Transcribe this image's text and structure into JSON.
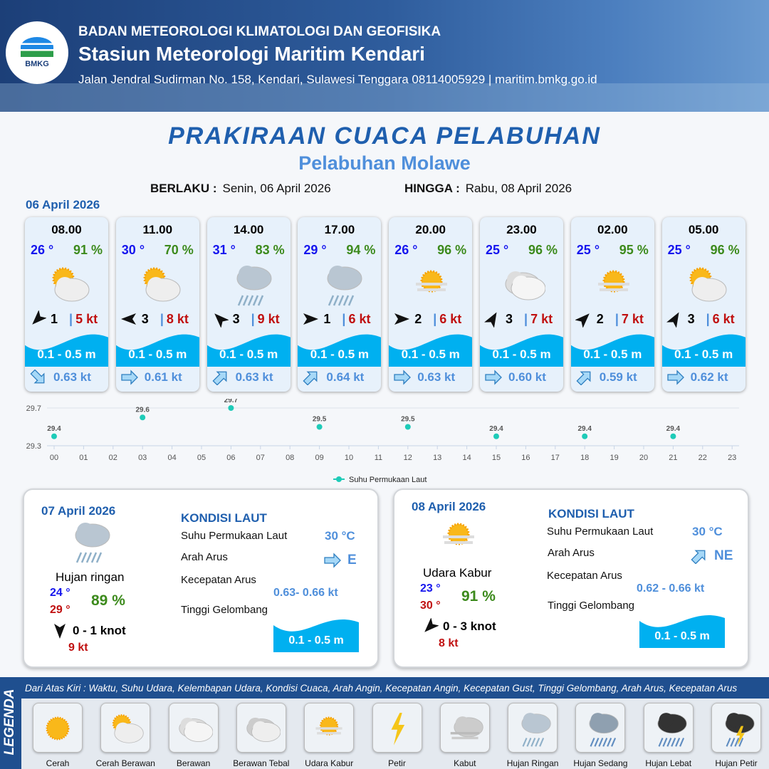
{
  "header": {
    "org": "BADAN METEOROLOGI KLIMATOLOGI DAN GEOFISIKA",
    "station": "Stasiun Meteorologi Maritim Kendari",
    "address": "Jalan Jendral Sudirman No. 158, Kendari, Sulawesi Tenggara  08114005929 | maritim.bmkg.go.id",
    "logo_text": "BMKG"
  },
  "title": "PRAKIRAAN CUACA PELABUHAN",
  "subtitle": "Pelabuhan Molawe",
  "validity": {
    "from_label": "BERLAKU :",
    "from": "Senin, 06 April 2026",
    "to_label": "HINGGA :",
    "to": "Rabu, 08 April 2026"
  },
  "day1_date": "06 April 2026",
  "colors": {
    "temp": "#1515ee",
    "humidity": "#3c8a1c",
    "gust": "#c01010",
    "wave": "#00b0f0",
    "accent": "#1f5fae"
  },
  "forecasts": [
    {
      "time": "08.00",
      "temp": "26 °",
      "hum": "91 %",
      "icon": "cerah-berawan",
      "wind_dir_deg": 225,
      "wind": "1",
      "gust": "5 kt",
      "wave": "0.1 - 0.5 m",
      "cur_dir_deg": 135,
      "cur": "0.63 kt"
    },
    {
      "time": "11.00",
      "temp": "30 °",
      "hum": "70 %",
      "icon": "cerah-berawan",
      "wind_dir_deg": 270,
      "wind": "3",
      "gust": "8 kt",
      "wave": "0.1 - 0.5 m",
      "cur_dir_deg": 90,
      "cur": "0.61 kt"
    },
    {
      "time": "14.00",
      "temp": "31 °",
      "hum": "83 %",
      "icon": "hujan-ringan",
      "wind_dir_deg": 315,
      "wind": "3",
      "gust": "9 kt",
      "wave": "0.1 - 0.5 m",
      "cur_dir_deg": 45,
      "cur": "0.63 kt"
    },
    {
      "time": "17.00",
      "temp": "29 °",
      "hum": "94 %",
      "icon": "hujan-ringan",
      "wind_dir_deg": 90,
      "wind": "1",
      "gust": "6 kt",
      "wave": "0.1 - 0.5 m",
      "cur_dir_deg": 45,
      "cur": "0.64 kt"
    },
    {
      "time": "20.00",
      "temp": "26 °",
      "hum": "96 %",
      "icon": "udara-kabur",
      "wind_dir_deg": 90,
      "wind": "2",
      "gust": "6 kt",
      "wave": "0.1 - 0.5 m",
      "cur_dir_deg": 90,
      "cur": "0.63 kt"
    },
    {
      "time": "23.00",
      "temp": "25 °",
      "hum": "96 %",
      "icon": "berawan",
      "wind_dir_deg": 30,
      "wind": "3",
      "gust": "7 kt",
      "wave": "0.1 - 0.5 m",
      "cur_dir_deg": 90,
      "cur": "0.60 kt"
    },
    {
      "time": "02.00",
      "temp": "25 °",
      "hum": "95 %",
      "icon": "udara-kabur",
      "wind_dir_deg": 45,
      "wind": "2",
      "gust": "7 kt",
      "wave": "0.1 - 0.5 m",
      "cur_dir_deg": 45,
      "cur": "0.59 kt"
    },
    {
      "time": "05.00",
      "temp": "25 °",
      "hum": "96 %",
      "icon": "cerah-berawan",
      "wind_dir_deg": 30,
      "wind": "3",
      "gust": "6 kt",
      "wave": "0.1 - 0.5 m",
      "cur_dir_deg": 90,
      "cur": "0.62 kt"
    }
  ],
  "chart_data": {
    "type": "scatter",
    "x_ticks": [
      "00",
      "01",
      "02",
      "03",
      "04",
      "05",
      "06",
      "07",
      "08",
      "09",
      "10",
      "11",
      "12",
      "13",
      "14",
      "15",
      "16",
      "17",
      "18",
      "19",
      "20",
      "21",
      "22",
      "23"
    ],
    "x": [
      0,
      3,
      6,
      9,
      12,
      15,
      18,
      21
    ],
    "values": [
      29.4,
      29.6,
      29.7,
      29.5,
      29.5,
      29.4,
      29.4,
      29.4
    ],
    "y_ticks": [
      "29.3",
      "29.7"
    ],
    "ylim": [
      29.3,
      29.7
    ],
    "legend": "Suhu Permukaan Laut",
    "legend_position": "bottom",
    "color": "#1ecbb8",
    "grid": true
  },
  "days": [
    {
      "date": "07 April 2026",
      "icon": "hujan-ringan",
      "condition": "Hujan ringan",
      "tmin": "24 °",
      "tmax": "29 °",
      "hum": "89 %",
      "wind_dir_deg": 180,
      "wind": "0  - 1 knot",
      "gust": "9 kt",
      "kondisi": "KONDISI LAUT",
      "sst_label": "Suhu Permukaan Laut",
      "sst": "30 °C",
      "arah_label": "Arah Arus",
      "arah": "E",
      "arah_deg": 90,
      "kec_label": "Kecepatan Arus",
      "kec": "0.63- 0.66 kt",
      "tg_label": "Tinggi Gelombang",
      "tg": "0.1 - 0.5 m"
    },
    {
      "date": "08 April 2026",
      "icon": "udara-kabur",
      "condition": "Udara Kabur",
      "tmin": "23 °",
      "tmax": "30 °",
      "hum": "91 %",
      "wind_dir_deg": 225,
      "wind": "0  - 3 knot",
      "gust": "8 kt",
      "kondisi": "KONDISI LAUT",
      "sst_label": "Suhu Permukaan Laut",
      "sst": "30 °C",
      "arah_label": "Arah Arus",
      "arah": "NE",
      "arah_deg": 45,
      "kec_label": "Kecepatan Arus",
      "kec": "0.62  - 0.66 kt",
      "tg_label": "Tinggi Gelombang",
      "tg": "0.1 - 0.5 m"
    }
  ],
  "legend": {
    "title": "LEGENDA",
    "description": "Dari Atas Kiri : Waktu, Suhu Udara, Kelembapan Udara, Kondisi Cuaca, Arah Angin, Kecepatan Angin, Kecepatan Gust, Tinggi Gelombang, Arah Arus, Kecepatan Arus",
    "items": [
      {
        "label": "Cerah",
        "icon": "cerah"
      },
      {
        "label": "Cerah Berawan",
        "icon": "cerah-berawan"
      },
      {
        "label": "Berawan",
        "icon": "berawan"
      },
      {
        "label": "Berawan Tebal",
        "icon": "berawan-tebal"
      },
      {
        "label": "Udara Kabur",
        "icon": "udara-kabur"
      },
      {
        "label": "Petir",
        "icon": "petir"
      },
      {
        "label": "Kabut",
        "icon": "kabut"
      },
      {
        "label": "Hujan Ringan",
        "icon": "hujan-ringan"
      },
      {
        "label": "Hujan Sedang",
        "icon": "hujan-sedang"
      },
      {
        "label": "Hujan Lebat",
        "icon": "hujan-lebat"
      },
      {
        "label": "Hujan Petir",
        "icon": "hujan-petir"
      }
    ]
  }
}
